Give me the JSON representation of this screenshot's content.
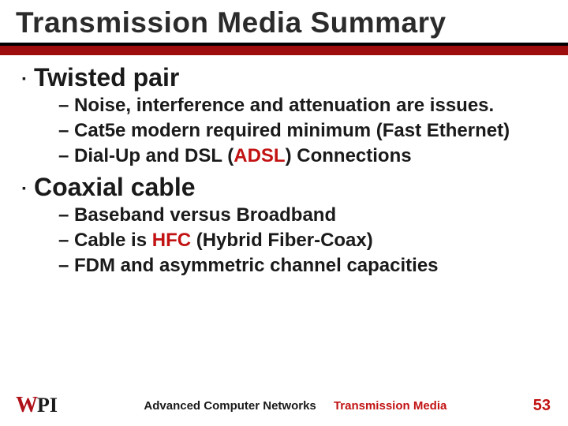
{
  "title": "Transmission Media Summary",
  "colors": {
    "red": "#c21212",
    "dark_red": "#9d0d0d",
    "text": "#1a1a1a",
    "logo_red": "#b0121a",
    "background": "#ffffff"
  },
  "typography": {
    "title_fontsize": 37,
    "section_fontsize": 32,
    "body_fontsize": 24,
    "footer_fontsize": 15,
    "pagenum_fontsize": 20,
    "font_family": "Comic Sans MS"
  },
  "sections": [
    {
      "heading": "Twisted pair",
      "items": [
        {
          "prefix": "– ",
          "text": "Noise, interference and attenuation are issues."
        },
        {
          "prefix": "– ",
          "text_before": "Cat5e modern required minimum (Fast Ethernet)"
        },
        {
          "prefix": "– ",
          "text_before": "Dial-Up and DSL (",
          "em": "ADSL",
          "text_after": ") Connections"
        }
      ]
    },
    {
      "heading": "Coaxial cable",
      "items": [
        {
          "prefix": "– ",
          "text": "Baseband versus Broadband"
        },
        {
          "prefix": "– ",
          "text_before": "Cable is ",
          "em": "HFC",
          "text_after": " (Hybrid Fiber-Coax)"
        },
        {
          "prefix": "– ",
          "text": "FDM and asymmetric channel capacities"
        }
      ]
    }
  ],
  "footer": {
    "logo_w": "W",
    "logo_pi": "PI",
    "course": "Advanced Computer Networks",
    "topic": "Transmission Media",
    "page": "53"
  }
}
